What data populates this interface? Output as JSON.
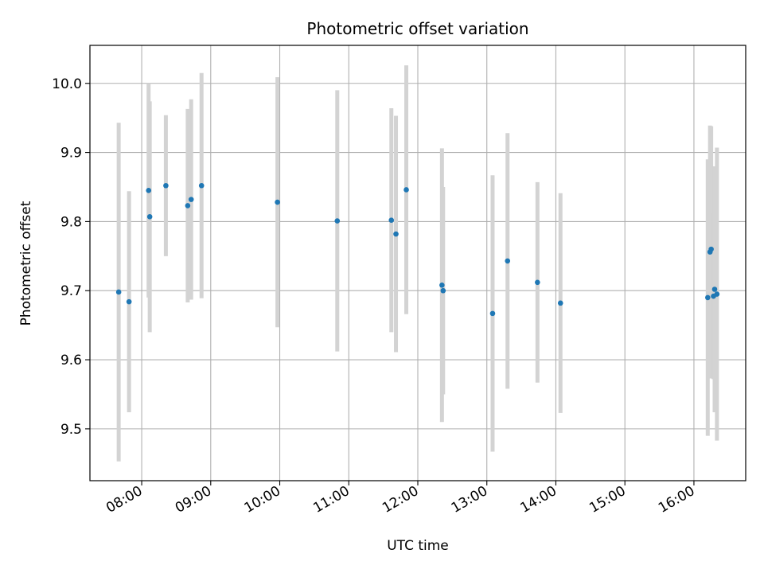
{
  "chart_data": {
    "type": "scatter",
    "title": "Photometric offset variation",
    "xlabel": "UTC time",
    "ylabel": "Photometric offset",
    "x_ticks": [
      "08:00",
      "09:00",
      "10:00",
      "11:00",
      "12:00",
      "13:00",
      "14:00",
      "15:00",
      "16:00"
    ],
    "y_ticks": [
      "9.5",
      "9.6",
      "9.7",
      "9.8",
      "9.9",
      "10.0"
    ],
    "xlim": [
      "07:15",
      "16:45"
    ],
    "ylim": [
      9.425,
      10.055
    ],
    "grid": true,
    "x_tick_rotation": -30,
    "colors": {
      "marker": "#1f77b4",
      "errorbar": "#d3d3d3",
      "grid": "#b0b0b0"
    },
    "points": [
      {
        "x": "07:40",
        "y": 9.698,
        "yerr": 0.245
      },
      {
        "x": "07:49",
        "y": 9.684,
        "yerr": 0.16
      },
      {
        "x": "08:06",
        "y": 9.845,
        "yerr": 0.155
      },
      {
        "x": "08:07",
        "y": 9.807,
        "yerr": 0.167
      },
      {
        "x": "08:21",
        "y": 9.852,
        "yerr": 0.102
      },
      {
        "x": "08:40",
        "y": 9.823,
        "yerr": 0.14
      },
      {
        "x": "08:43",
        "y": 9.832,
        "yerr": 0.145
      },
      {
        "x": "08:52",
        "y": 9.852,
        "yerr": 0.163
      },
      {
        "x": "09:58",
        "y": 9.828,
        "yerr": 0.181
      },
      {
        "x": "10:50",
        "y": 9.801,
        "yerr": 0.189
      },
      {
        "x": "11:37",
        "y": 9.802,
        "yerr": 0.162
      },
      {
        "x": "11:41",
        "y": 9.782,
        "yerr": 0.171
      },
      {
        "x": "11:50",
        "y": 9.846,
        "yerr": 0.18
      },
      {
        "x": "12:21",
        "y": 9.708,
        "yerr": 0.198
      },
      {
        "x": "12:22",
        "y": 9.7,
        "yerr": 0.15
      },
      {
        "x": "13:05",
        "y": 9.667,
        "yerr": 0.2
      },
      {
        "x": "13:18",
        "y": 9.743,
        "yerr": 0.185
      },
      {
        "x": "13:44",
        "y": 9.712,
        "yerr": 0.145
      },
      {
        "x": "14:04",
        "y": 9.682,
        "yerr": 0.159
      },
      {
        "x": "16:12",
        "y": 9.69,
        "yerr": 0.2
      },
      {
        "x": "16:14",
        "y": 9.756,
        "yerr": 0.183
      },
      {
        "x": "16:15",
        "y": 9.76,
        "yerr": 0.178
      },
      {
        "x": "16:17",
        "y": 9.692,
        "yerr": 0.12
      },
      {
        "x": "16:18",
        "y": 9.702,
        "yerr": 0.178
      },
      {
        "x": "16:20",
        "y": 9.695,
        "yerr": 0.212
      }
    ]
  }
}
